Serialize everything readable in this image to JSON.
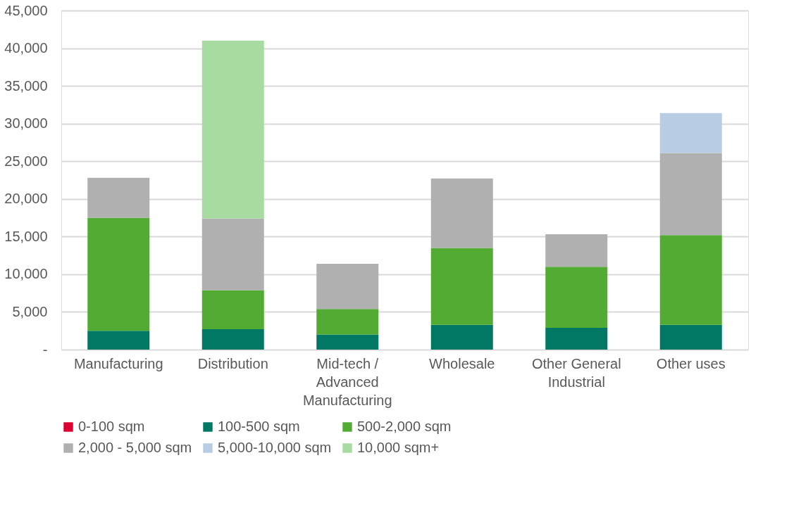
{
  "chart_data": {
    "type": "bar",
    "stacked": true,
    "categories": [
      "Manufacturing",
      "Distribution",
      "Mid-tech / Advanced Manufacturing",
      "Wholesale",
      "Other General Industrial",
      "Other uses"
    ],
    "series": [
      {
        "name": "0-100 sqm",
        "color": "#dc0033",
        "values": [
          0,
          0,
          0,
          0,
          0,
          0
        ]
      },
      {
        "name": "100-500 sqm",
        "color": "#007864",
        "values": [
          2500,
          2700,
          2000,
          3300,
          2900,
          3300
        ]
      },
      {
        "name": "500-2,000 sqm",
        "color": "#52ac33",
        "values": [
          15000,
          5200,
          3400,
          10200,
          8100,
          11900
        ]
      },
      {
        "name": "2,000 - 5,000 sqm",
        "color": "#b0b0b0",
        "values": [
          5300,
          9500,
          6000,
          9200,
          4300,
          10900
        ]
      },
      {
        "name": "5,000-10,000 sqm",
        "color": "#b8cce4",
        "values": [
          0,
          0,
          0,
          0,
          0,
          5300
        ]
      },
      {
        "name": "10,000 sqm+",
        "color": "#a8dba2",
        "values": [
          0,
          23600,
          0,
          0,
          0,
          0
        ]
      }
    ],
    "ylim": [
      0,
      45000
    ],
    "yticks": [
      {
        "value": 0,
        "label": "-"
      },
      {
        "value": 5000,
        "label": "5,000"
      },
      {
        "value": 10000,
        "label": "10,000"
      },
      {
        "value": 15000,
        "label": "15,000"
      },
      {
        "value": 20000,
        "label": "20,000"
      },
      {
        "value": 25000,
        "label": "25,000"
      },
      {
        "value": 30000,
        "label": "30,000"
      },
      {
        "value": 35000,
        "label": "35,000"
      },
      {
        "value": 40000,
        "label": "40,000"
      },
      {
        "value": 45000,
        "label": "45,000"
      }
    ],
    "grid": "y",
    "legend": "bottom"
  }
}
